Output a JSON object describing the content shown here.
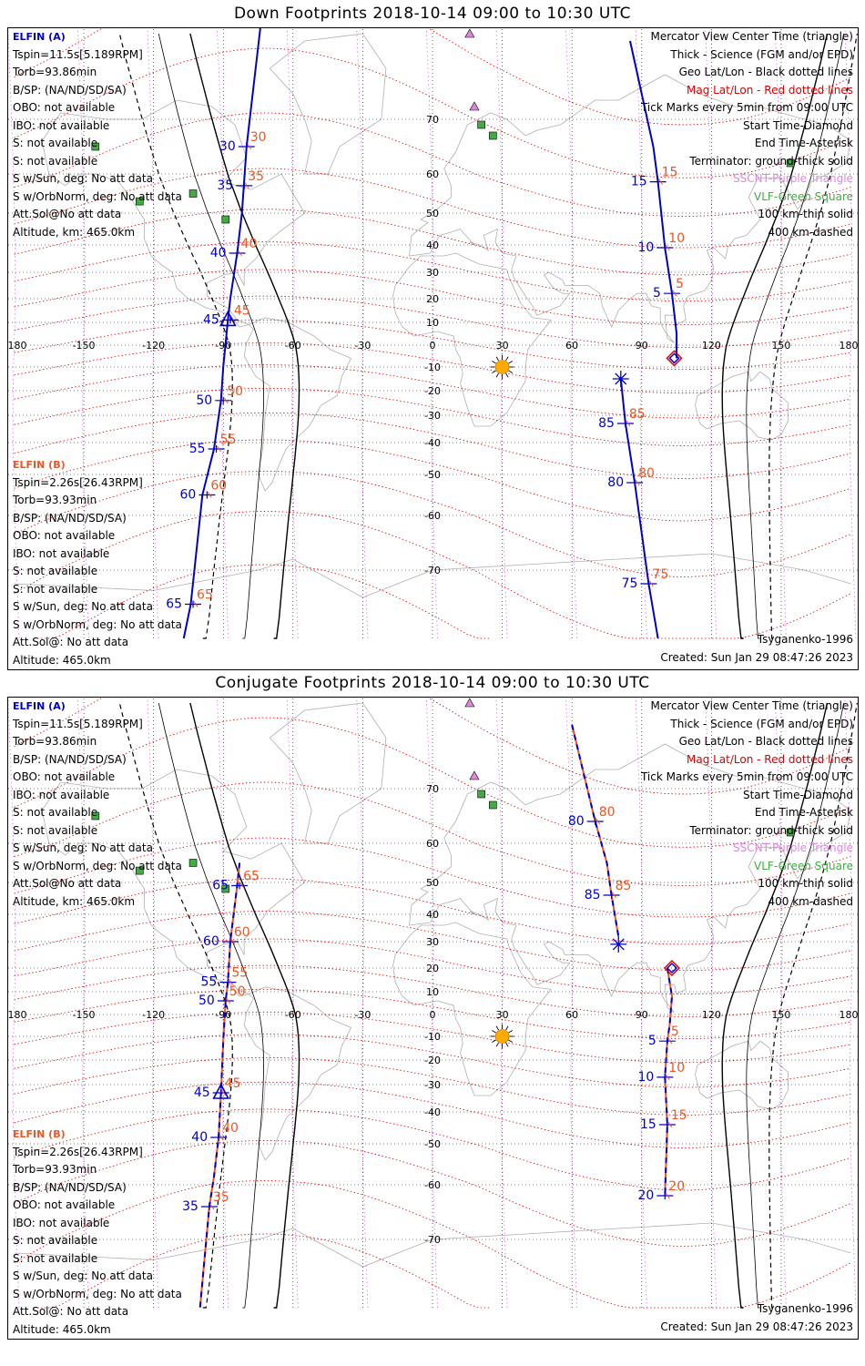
{
  "panels": [
    {
      "id": "down",
      "title": "Down Footprints 2018-10-14 09:00 to 10:30 UTC",
      "sat_a": {
        "name": "ELFIN (A)",
        "lines": [
          "Tspin=11.5s[5.189RPM]",
          "Torb=93.86min",
          "B/SP: (NA/ND/SD/SA)",
          "OBO: not available",
          "IBO: not available",
          "S: not available",
          "S: not available",
          "S w/Sun, deg: No att data",
          "S w/OrbNorm, deg: No att data",
          "Att.Sol@No att data",
          "Altitude, km: 465.0km"
        ]
      },
      "sat_b": {
        "name": "ELFIN (B)",
        "lines": [
          "Tspin=2.26s[26.43RPM]",
          "Torb=93.93min",
          "B/SP: (NA/ND/SD/SA)",
          "OBO: not available",
          "IBO: not available",
          "S: not available",
          "S: not available",
          "S w/Sun, deg: No att data",
          "S w/OrbNorm, deg: No att data",
          "Att.Sol@: No att data",
          "Altitude: 465.0km"
        ]
      },
      "model": "Tsyganenko-1996",
      "created": "Created: Sun Jan 29 08:47:26 2023",
      "a_track": {
        "ticks": [
          {
            "lon": -80,
            "lat": 65,
            "label": "30"
          },
          {
            "lon": -81,
            "lat": 57,
            "label": "35"
          },
          {
            "lon": -84,
            "lat": 37,
            "label": "40"
          },
          {
            "lon": -87,
            "lat": 11,
            "label": "45"
          },
          {
            "lon": -90,
            "lat": -24,
            "label": "50"
          },
          {
            "lon": -93,
            "lat": -42,
            "label": "55"
          },
          {
            "lon": -97,
            "lat": -55,
            "label": "60"
          },
          {
            "lon": -103,
            "lat": -75,
            "label": "65"
          }
        ],
        "line": [
          [
            -74,
            84
          ],
          [
            -80,
            65
          ],
          [
            -82,
            50
          ],
          [
            -84,
            37
          ],
          [
            -87,
            20
          ],
          [
            -88,
            11
          ],
          [
            -90,
            -10
          ],
          [
            -91,
            -24
          ],
          [
            -94,
            -42
          ],
          [
            -99,
            -55
          ],
          [
            -104,
            -75
          ],
          [
            -107,
            -80
          ]
        ]
      },
      "b_track_north": {
        "ticks": [
          {
            "lon": 97,
            "lat": 58,
            "label": "15"
          },
          {
            "lon": 100,
            "lat": 39,
            "label": "10"
          },
          {
            "lon": 103,
            "lat": 22,
            "label": "5"
          }
        ],
        "line": [
          [
            85,
            82
          ],
          [
            95,
            65
          ],
          [
            97,
            58
          ],
          [
            100,
            39
          ],
          [
            103,
            22
          ],
          [
            105,
            5
          ],
          [
            105,
            -6
          ]
        ]
      },
      "b_track_south": {
        "ticks": [
          {
            "lon": 83,
            "lat": -33,
            "label": "85"
          },
          {
            "lon": 87,
            "lat": -52,
            "label": "80"
          },
          {
            "lon": 93,
            "lat": -72,
            "label": "75"
          }
        ],
        "line": [
          [
            81,
            -15
          ],
          [
            83,
            -33
          ],
          [
            87,
            -52
          ],
          [
            93,
            -72
          ],
          [
            97,
            -80
          ]
        ]
      },
      "a_start": {
        "lon": -88,
        "lat": 11
      },
      "b_start": {
        "lon": 104,
        "lat": -6
      },
      "b_end": {
        "lon": 81,
        "lat": -15
      }
    },
    {
      "id": "conj",
      "title": "Conjugate Footprints 2018-10-14 09:00 to 10:30 UTC",
      "sat_a": {
        "name": "ELFIN (A)",
        "lines": [
          "Tspin=11.5s[5.189RPM]",
          "Torb=93.86min",
          "B/SP: (NA/ND/SD/SA)",
          "OBO: not available",
          "IBO: not available",
          "S: not available",
          "S: not available",
          "S w/Sun, deg: No att data",
          "S w/OrbNorm, deg: No att data",
          "Att.Sol@No att data",
          "Altitude, km: 465.0km"
        ]
      },
      "sat_b": {
        "name": "ELFIN (B)",
        "lines": [
          "Tspin=2.26s[26.43RPM]",
          "Torb=93.93min",
          "B/SP: (NA/ND/SD/SA)",
          "OBO: not available",
          "IBO: not available",
          "S: not available",
          "S: not available",
          "S w/Sun, deg: No att data",
          "S w/OrbNorm, deg: No att data",
          "Att.Sol@: No att data",
          "Altitude: 465.0km"
        ]
      },
      "model": "Tsyganenko-1996",
      "created": "Created: Sun Jan 29 08:47:26 2023",
      "a_track": {
        "ticks": [
          {
            "lon": -83,
            "lat": 49,
            "label": "65"
          },
          {
            "lon": -87,
            "lat": 30,
            "label": "60"
          },
          {
            "lon": -88,
            "lat": 14,
            "label": "55"
          },
          {
            "lon": -89,
            "lat": 6,
            "label": "50"
          },
          {
            "lon": -91,
            "lat": -33,
            "label": "45"
          },
          {
            "lon": -92,
            "lat": -48,
            "label": "40"
          },
          {
            "lon": -96,
            "lat": -64,
            "label": "35"
          }
        ],
        "line": [
          [
            -83,
            55
          ],
          [
            -84,
            49
          ],
          [
            -87,
            30
          ],
          [
            -88,
            14
          ],
          [
            -89,
            6
          ],
          [
            -90,
            -12
          ],
          [
            -91,
            -33
          ],
          [
            -92,
            -48
          ],
          [
            -94,
            -58
          ],
          [
            -96,
            -64
          ],
          [
            -100,
            -80
          ]
        ]
      },
      "b_track_north": {
        "ticks": [
          {
            "lon": 70,
            "lat": 64,
            "label": "80"
          },
          {
            "lon": 77,
            "lat": 46,
            "label": "85"
          }
        ],
        "line": [
          [
            60,
            80
          ],
          [
            70,
            64
          ],
          [
            75,
            55
          ],
          [
            77,
            46
          ],
          [
            80,
            32
          ]
        ]
      },
      "b_track_south": {
        "ticks": [
          {
            "lon": 101,
            "lat": -12,
            "label": "5"
          },
          {
            "lon": 100,
            "lat": -27,
            "label": "10"
          },
          {
            "lon": 101,
            "lat": -44,
            "label": "15"
          },
          {
            "lon": 100,
            "lat": -62,
            "label": "20"
          }
        ],
        "line": [
          [
            101,
            20
          ],
          [
            103,
            8
          ],
          [
            102,
            -5
          ],
          [
            101,
            -12
          ],
          [
            100,
            -27
          ],
          [
            101,
            -44
          ],
          [
            100,
            -62
          ]
        ]
      },
      "a_start": {
        "lon": -91,
        "lat": -33
      },
      "b_start": {
        "lon": 103,
        "lat": 20
      },
      "b_end": {
        "lon": 80,
        "lat": 29
      }
    }
  ],
  "legend_lines": [
    {
      "text": "Mercator View Center Time (triangle)",
      "color": "#000000"
    },
    {
      "text": "Thick - Science (FGM and/or EPD)",
      "color": "#000000"
    },
    {
      "text": "Geo Lat/Lon - Black dotted lines",
      "color": "#000000"
    },
    {
      "text": "Mag Lat/Lon - Red dotted lines",
      "color": "#dd0000"
    },
    {
      "text": "Tick Marks every 5min from 09:00 UTC",
      "color": "#000000"
    },
    {
      "text": "Start Time-Diamond",
      "color": "#000000"
    },
    {
      "text": "End Time-Asterisk",
      "color": "#000000"
    },
    {
      "text": "Terminator: ground-thick solid",
      "color": "#000000"
    },
    {
      "text": "SSCNT-Purple Triangle",
      "color": "#dd88dd"
    },
    {
      "text": "VLF-Green Square",
      "color": "#44aa44"
    },
    {
      "text": "100 km-thin solid",
      "color": "#000000"
    },
    {
      "text": "400 km-dashed",
      "color": "#000000"
    }
  ],
  "lon_labels": [
    "-180",
    "-150",
    "-120",
    "-90",
    "-60",
    "-30",
    "0",
    "30",
    "60",
    "90",
    "120",
    "150",
    "180"
  ],
  "lat_labels": [
    "70",
    "60",
    "50",
    "40",
    "30",
    "20",
    "10",
    "-10",
    "-20",
    "-30",
    "-40",
    "-50",
    "-60",
    "-70"
  ],
  "colors": {
    "sat_a": "#0000cc",
    "sat_b_labels": "#ee5522",
    "mag_grid": "#dd0000",
    "geo_grid": "#000000",
    "sun": "#ffaa00",
    "sscnt": "#dd88dd",
    "vlf": "#44aa44"
  },
  "icons": [
    "sun-icon",
    "triangle-icon",
    "diamond-icon",
    "asterisk-icon",
    "square-icon"
  ]
}
